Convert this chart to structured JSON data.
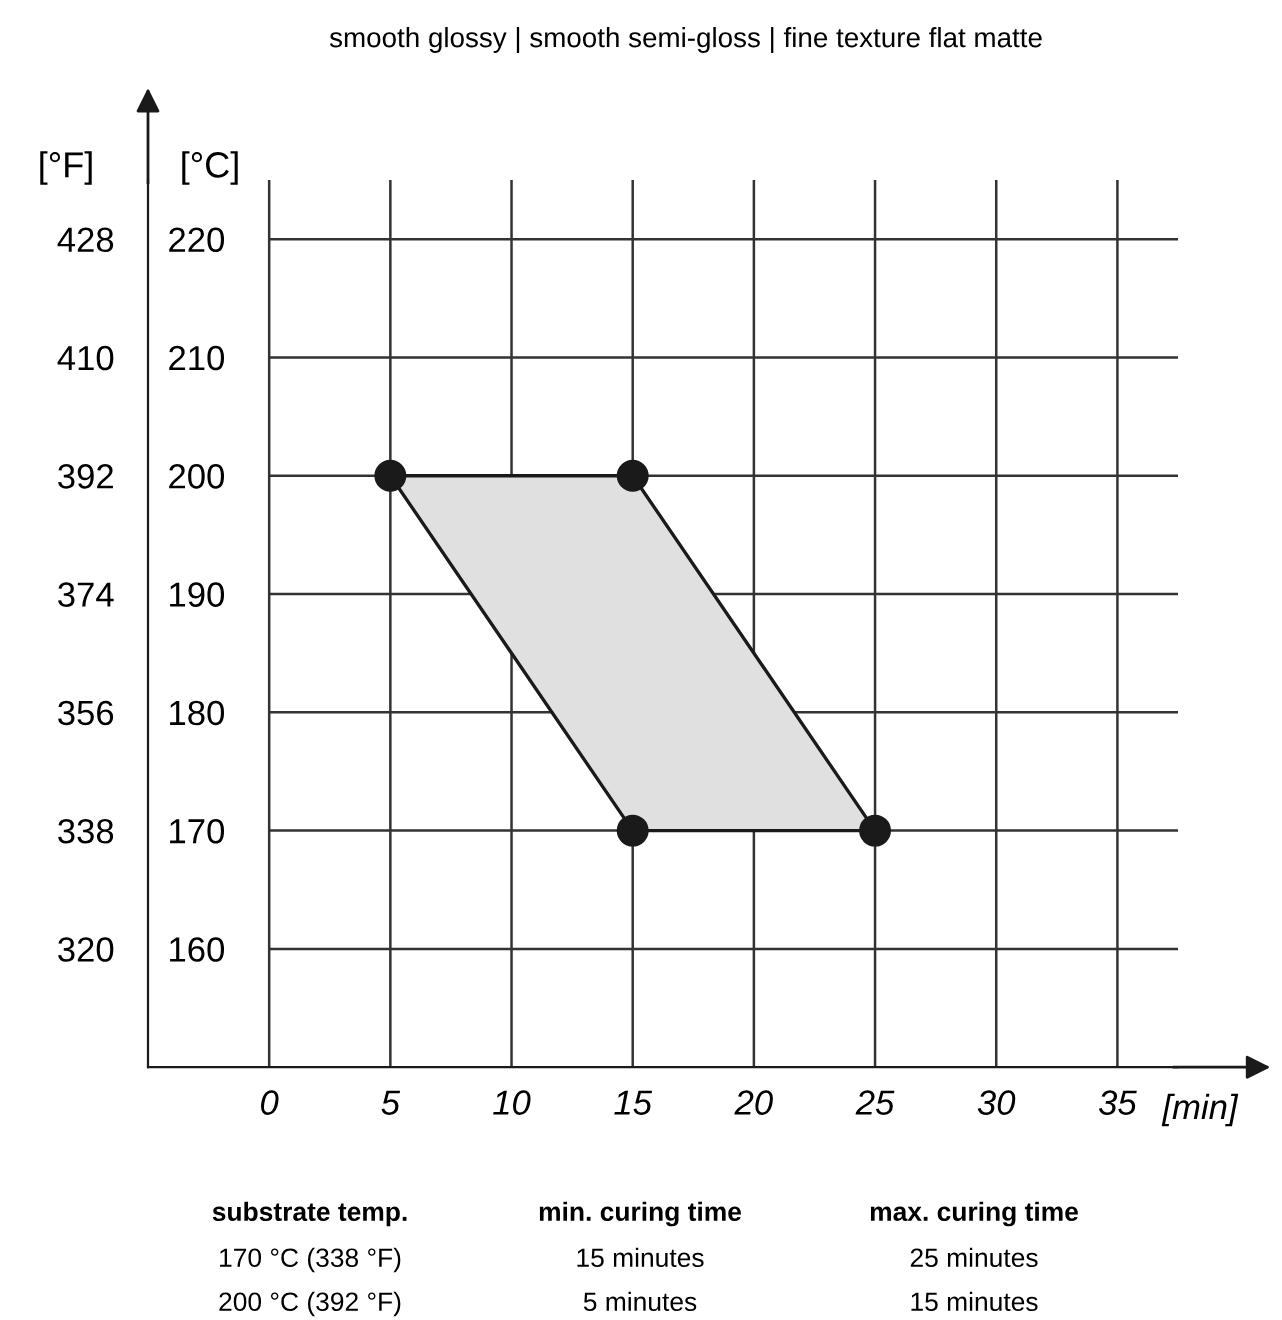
{
  "chart_data": {
    "type": "area",
    "title": "smooth glossy | smooth semi-gloss | fine texture flat matte",
    "xlabel": "[min]",
    "ylabel": "[°C]",
    "y2label": "[°F]",
    "series": [
      {
        "color": "#e0e0e0",
        "x": [
          5,
          15,
          25,
          15,
          5
        ],
        "values": [
          200,
          200,
          170,
          170,
          200
        ]
      },
      {
        "type": "scatter",
        "marker": "circle",
        "color": "#1a1a1a",
        "x": [
          5,
          15,
          15,
          25
        ],
        "values": [
          200,
          200,
          170,
          170
        ]
      }
    ],
    "xlim": [
      -5,
      37.5
    ],
    "xticks": [
      0,
      5,
      10,
      15,
      20,
      25,
      30,
      35
    ],
    "ylim": [
      150,
      225
    ],
    "yticks": [
      160,
      170,
      180,
      190,
      200,
      210,
      220
    ],
    "y2lim": [
      302,
      437
    ],
    "y2ticks": [
      320,
      338,
      356,
      374,
      392,
      410,
      428
    ],
    "grid": true,
    "annotations": [
      "substrate temp.",
      "min. curing time",
      "max. curing time",
      "170 °C (338 °F)",
      "15 minutes",
      "25 minutes",
      "200 °C (392 °F)",
      "5 minutes",
      "15 minutes"
    ]
  }
}
